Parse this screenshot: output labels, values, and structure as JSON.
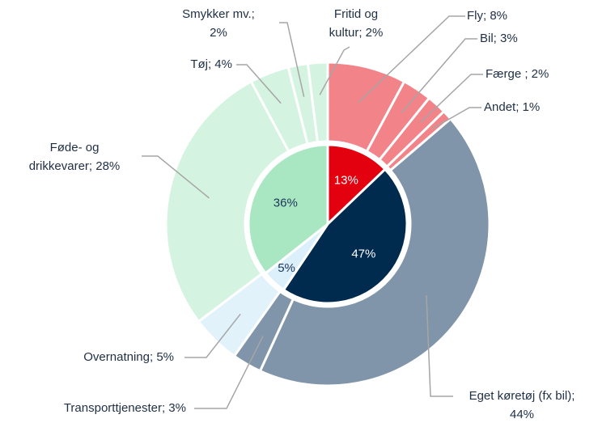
{
  "chart_data": {
    "type": "nested-pie",
    "inner": {
      "values": [
        13,
        47,
        5,
        36
      ],
      "value_labels": [
        "13%",
        "47%",
        "5%",
        "36%"
      ],
      "colors": [
        "#e3000f",
        "#002a4e",
        "#dcf0fb",
        "#a9e7c2"
      ],
      "label_colors": [
        "#ffffff",
        "#ffffff",
        "#1d3557",
        "#1d3557"
      ]
    },
    "outer": {
      "values": [
        8,
        3,
        2,
        1,
        44,
        3,
        5,
        28,
        4,
        2,
        2
      ],
      "labels": [
        [
          "Fly; 8%"
        ],
        [
          "Bil; 3%"
        ],
        [
          "Færge ; 2%"
        ],
        [
          "Andet; 1%"
        ],
        [
          "Eget køretøj (fx bil);",
          "44%"
        ],
        [
          "Transporttjenester; 3%"
        ],
        [
          "Overnatning; 5%"
        ],
        [
          "Føde- og",
          "drikkevarer; 28%"
        ],
        [
          "Tøj; 4%"
        ],
        [
          "Smykker mv.;",
          "2%"
        ],
        [
          "Fritid og",
          "kultur; 2%"
        ]
      ],
      "colors": [
        "#f28389",
        "#f28389",
        "#f28389",
        "#f28389",
        "#8095a9",
        "#8095a9",
        "#e1f2fb",
        "#d4f3e1",
        "#d4f3e1",
        "#d4f3e1",
        "#d4f3e1"
      ]
    }
  }
}
